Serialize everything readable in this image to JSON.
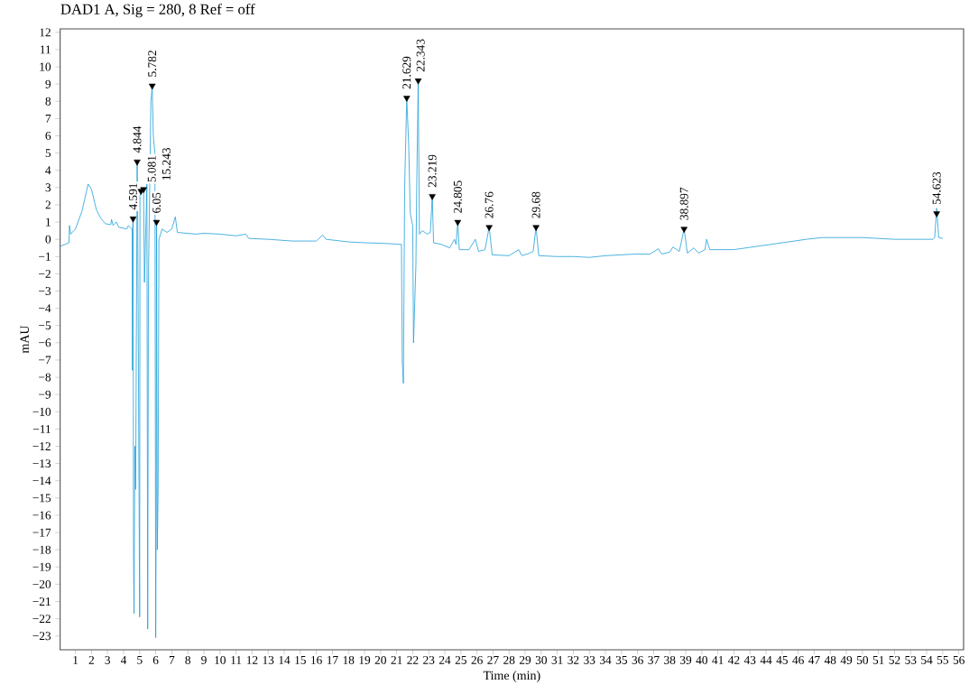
{
  "chart_data": {
    "type": "line",
    "title": "DAD1 A, Sig = 280, 8 Ref = off",
    "xlabel": "Time (min)",
    "ylabel": "mAU",
    "xlim": [
      0.05,
      56.3
    ],
    "ylim": [
      -23.8,
      12.2
    ],
    "xticks": [
      1,
      2,
      3,
      4,
      5,
      6,
      7,
      8,
      9,
      10,
      11,
      12,
      13,
      14,
      15,
      16,
      17,
      18,
      19,
      20,
      21,
      22,
      23,
      24,
      25,
      26,
      27,
      28,
      29,
      30,
      31,
      32,
      33,
      34,
      35,
      36,
      37,
      38,
      39,
      40,
      41,
      42,
      43,
      44,
      45,
      46,
      47,
      48,
      49,
      50,
      51,
      52,
      53,
      54,
      55,
      56
    ],
    "yticks": [
      {
        "value": -23,
        "label": "−23"
      },
      {
        "value": -22,
        "label": "−22"
      },
      {
        "value": -21,
        "label": "−21"
      },
      {
        "value": -20,
        "label": "−20"
      },
      {
        "value": -19,
        "label": "−19"
      },
      {
        "value": -18,
        "label": "−18"
      },
      {
        "value": -17,
        "label": "−17"
      },
      {
        "value": -16,
        "label": "−16"
      },
      {
        "value": -15,
        "label": "−15"
      },
      {
        "value": -14,
        "label": "−14"
      },
      {
        "value": -13,
        "label": "−13"
      },
      {
        "value": -12,
        "label": "−12"
      },
      {
        "value": -11,
        "label": "−11"
      },
      {
        "value": -10,
        "label": "−10"
      },
      {
        "value": -9,
        "label": "−9"
      },
      {
        "value": -8,
        "label": "−8"
      },
      {
        "value": -7,
        "label": "−7"
      },
      {
        "value": -6,
        "label": "−6"
      },
      {
        "value": -5,
        "label": "−5"
      },
      {
        "value": -4,
        "label": "−4"
      },
      {
        "value": -3,
        "label": "−3"
      },
      {
        "value": -2,
        "label": "−2"
      },
      {
        "value": -1,
        "label": "−1"
      },
      0,
      1,
      2,
      3,
      4,
      5,
      6,
      7,
      8,
      9,
      10,
      11,
      12
    ],
    "series": [
      {
        "color": "#20a0d8",
        "x": [
          0.07,
          0.6,
          0.63,
          0.7,
          1.0,
          1.4,
          1.79,
          2.0,
          2.31,
          2.6,
          2.88,
          3.2,
          3.25,
          3.35,
          3.55,
          3.7,
          4.2,
          4.3,
          4.45,
          4.53,
          4.55,
          4.57,
          4.591,
          4.62,
          4.65,
          4.7,
          4.75,
          4.844,
          4.88,
          5.0,
          5.02,
          5.081,
          5.15,
          5.243,
          5.3,
          5.45,
          5.5,
          5.55,
          5.7,
          5.782,
          5.85,
          5.95,
          6.0,
          6.03,
          6.05,
          6.1,
          6.15,
          6.2,
          6.4,
          6.7,
          7.0,
          7.22,
          7.35,
          8.5,
          9.0,
          10.0,
          11.0,
          11.6,
          11.8,
          13.0,
          14.5,
          16.0,
          16.4,
          16.6,
          18.0,
          19.0,
          20.5,
          21.3,
          21.35,
          21.42,
          21.5,
          21.629,
          21.75,
          21.85,
          22.0,
          22.05,
          22.2,
          22.25,
          22.343,
          22.42,
          22.6,
          22.9,
          23.1,
          23.219,
          23.3,
          23.8,
          24.3,
          24.6,
          24.7,
          24.805,
          24.9,
          25.5,
          25.9,
          26.1,
          26.5,
          26.76,
          26.95,
          28.0,
          28.6,
          28.8,
          29.3,
          29.5,
          29.68,
          29.85,
          31.0,
          32.0,
          33.0,
          34.0,
          35.0,
          36.0,
          36.76,
          37.3,
          37.5,
          38.0,
          38.2,
          38.6,
          38.897,
          39.1,
          39.5,
          39.8,
          40.2,
          40.3,
          40.5,
          42.0,
          43.5,
          45.4,
          46.5,
          47.5,
          50.0,
          52.0,
          54.4,
          54.5,
          54.623,
          54.75,
          55.0
        ],
        "values": [
          -0.4,
          -0.2,
          0.8,
          0.3,
          0.6,
          1.6,
          3.2,
          2.9,
          1.7,
          1.2,
          0.9,
          0.85,
          1.15,
          0.8,
          1.0,
          0.7,
          0.6,
          0.8,
          0.65,
          0.6,
          -7.6,
          0.8,
          1.2,
          -18.4,
          -21.7,
          -12.0,
          -14.5,
          4.5,
          1.0,
          -21.9,
          2.5,
          2.8,
          3.0,
          2.9,
          -2.5,
          3.2,
          -22.6,
          -2.0,
          8.0,
          8.9,
          6.0,
          5.0,
          -23.1,
          -16.0,
          1.0,
          -18.0,
          -14.6,
          0.0,
          0.6,
          0.4,
          0.6,
          1.3,
          0.4,
          0.3,
          0.35,
          0.3,
          0.2,
          0.3,
          0.05,
          0.0,
          -0.1,
          -0.1,
          0.25,
          0.0,
          -0.15,
          -0.2,
          -0.25,
          -0.3,
          -7.0,
          -8.35,
          3.0,
          8.2,
          5.5,
          1.5,
          0.8,
          -6.0,
          -1.5,
          3.0,
          9.2,
          0.3,
          0.5,
          0.3,
          0.4,
          2.5,
          -0.2,
          -0.3,
          -0.5,
          0.0,
          -0.3,
          1.0,
          -0.6,
          -0.6,
          0.0,
          -0.7,
          -0.6,
          0.7,
          -0.9,
          -0.95,
          -0.6,
          -0.95,
          -0.8,
          -0.7,
          0.7,
          -0.95,
          -1.0,
          -1.0,
          -1.05,
          -0.95,
          -0.9,
          -0.85,
          -0.86,
          -0.55,
          -0.85,
          -0.75,
          -0.45,
          -0.7,
          0.6,
          -0.8,
          -0.5,
          -0.8,
          -0.6,
          0.0,
          -0.6,
          -0.6,
          -0.4,
          -0.15,
          0.0,
          0.1,
          0.1,
          0.0,
          0.0,
          0.1,
          1.8,
          0.1,
          0.05
        ]
      },
      {
        "type": "scatter",
        "marker": "triangle",
        "color": "#000000",
        "x": [
          4.591,
          4.844,
          5.081,
          5.243,
          5.782,
          6.05,
          21.629,
          22.343,
          23.219,
          24.805,
          26.76,
          29.68,
          38.897,
          54.623
        ],
        "values": [
          1.2,
          4.5,
          2.8,
          2.9,
          8.9,
          1.0,
          8.2,
          9.2,
          2.5,
          1.0,
          0.7,
          0.7,
          0.6,
          1.5
        ]
      }
    ],
    "annotations": [
      {
        "text": "4.591",
        "x": 4.591,
        "y": 1.2
      },
      {
        "text": "4.844",
        "x": 4.844,
        "y": 4.5
      },
      {
        "text": "5.081",
        "x": 5.081,
        "y": 2.8
      },
      {
        "text": "15.243",
        "x": 5.243,
        "y": 2.9
      },
      {
        "text": "5.782",
        "x": 5.782,
        "y": 8.9
      },
      {
        "text": "6.05",
        "x": 6.05,
        "y": 1.0
      },
      {
        "text": "21.629",
        "x": 21.629,
        "y": 8.2
      },
      {
        "text": "22.343",
        "x": 22.343,
        "y": 9.2
      },
      {
        "text": "23.219",
        "x": 23.219,
        "y": 2.5
      },
      {
        "text": "24.805",
        "x": 24.805,
        "y": 1.0
      },
      {
        "text": "26.76",
        "x": 26.76,
        "y": 0.7
      },
      {
        "text": "29.68",
        "x": 29.68,
        "y": 0.7
      },
      {
        "text": "38.897",
        "x": 38.897,
        "y": 0.6
      },
      {
        "text": "54.623",
        "x": 54.623,
        "y": 1.5
      }
    ]
  }
}
